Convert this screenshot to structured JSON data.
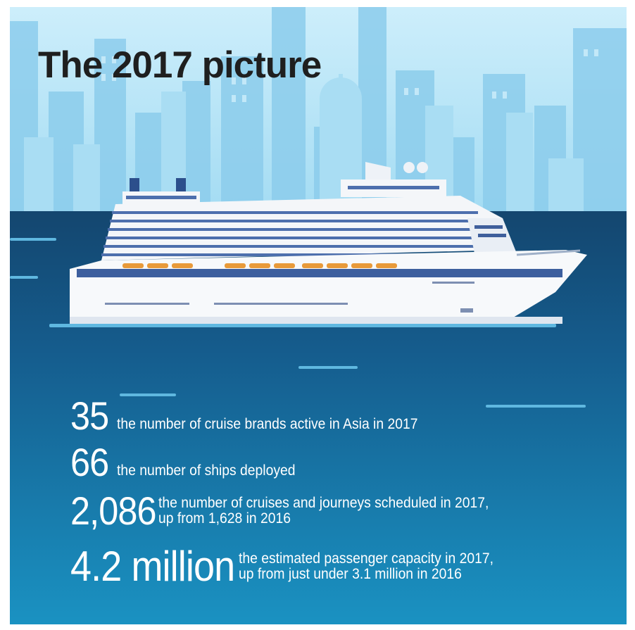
{
  "title": "The 2017 picture",
  "stats": [
    {
      "value": "35",
      "lines": [
        "the number of cruise brands active in Asia in 2017"
      ]
    },
    {
      "value": "66",
      "lines": [
        "the number of ships deployed"
      ]
    },
    {
      "value": "2,086",
      "lines": [
        "the number of cruises and journeys scheduled in 2017,",
        "up from 1,628 in 2016"
      ]
    },
    {
      "value": "4.2 million",
      "lines": [
        "the estimated passenger capacity in 2017,",
        "up from just under 3.1 million in 2016"
      ]
    }
  ],
  "colors": {
    "sky_top": "#cdeefb",
    "sky_bottom": "#9fdaf2",
    "buildings": "#7fc8ea",
    "sea_dark": "#15507f",
    "sea_light": "#1a8dbe",
    "ship_hull": "#f4f6f9",
    "ship_stripe": "#4d6fad",
    "lifeboats": "#e89a3a",
    "title_text": "#1f1f1f",
    "stat_text": "#ffffff"
  }
}
